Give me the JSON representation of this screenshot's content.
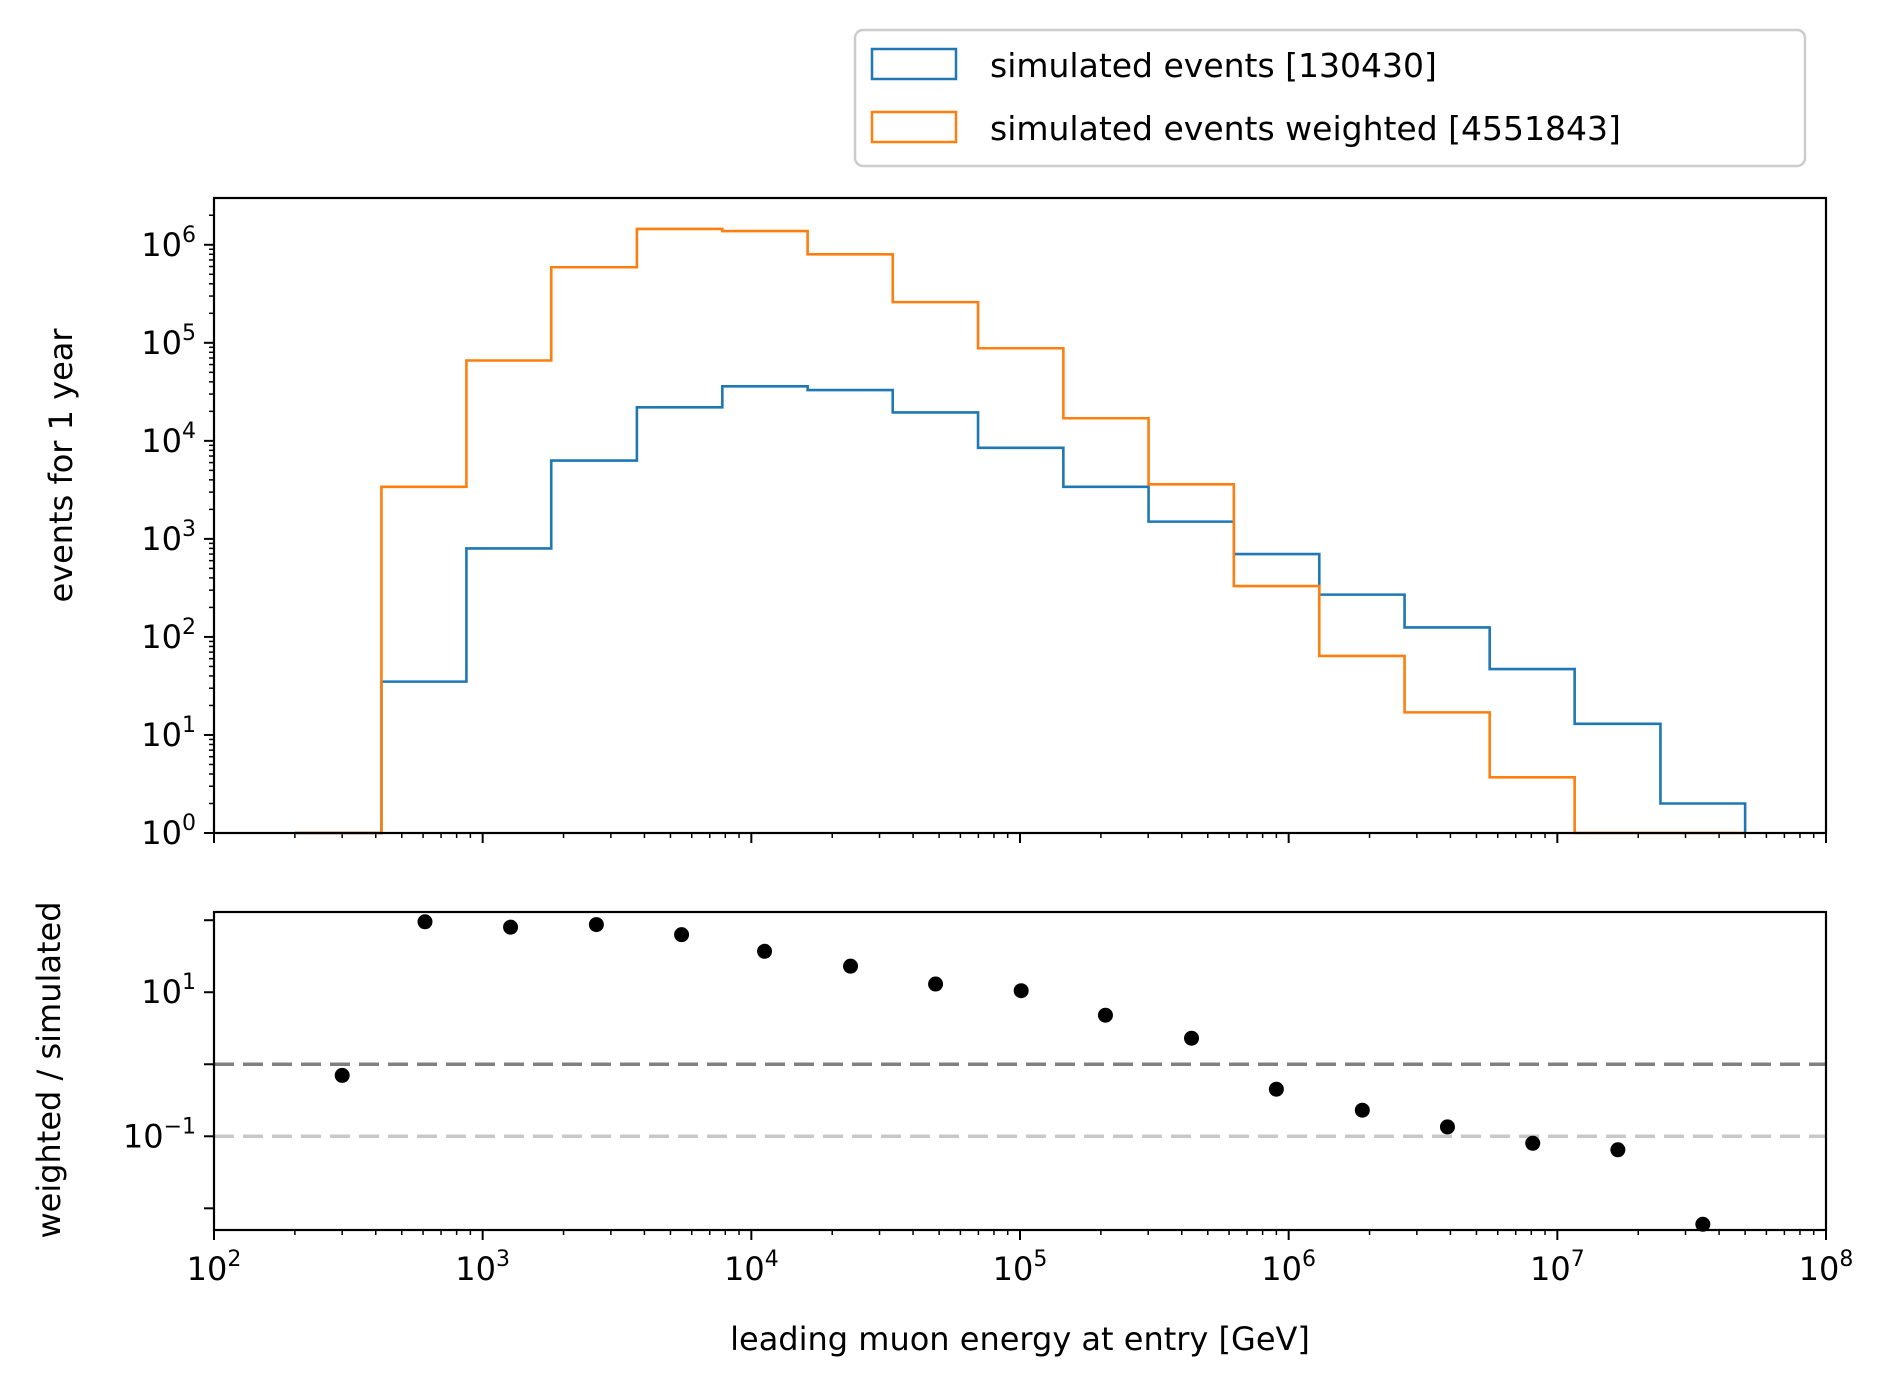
{
  "chart_data": [
    {
      "type": "histogram-step",
      "x_scale": "log",
      "y_scale": "log",
      "xlim": [
        100,
        100000000
      ],
      "ylim": [
        1,
        3000000
      ],
      "xlabel": "",
      "ylabel": "events for 1 year",
      "x_tick_labels": [
        {
          "value": 100,
          "base": "10",
          "exp": "2"
        },
        {
          "value": 1000,
          "base": "10",
          "exp": "3"
        },
        {
          "value": 10000,
          "base": "10",
          "exp": "4"
        },
        {
          "value": 100000,
          "base": "10",
          "exp": "5"
        },
        {
          "value": 1000000,
          "base": "10",
          "exp": "6"
        },
        {
          "value": 10000000,
          "base": "10",
          "exp": "7"
        },
        {
          "value": 100000000,
          "base": "10",
          "exp": "8"
        }
      ],
      "y_tick_labels": [
        {
          "value": 1,
          "base": "10",
          "exp": "0"
        },
        {
          "value": 10,
          "base": "10",
          "exp": "1"
        },
        {
          "value": 100,
          "base": "10",
          "exp": "2"
        },
        {
          "value": 1000,
          "base": "10",
          "exp": "3"
        },
        {
          "value": 10000,
          "base": "10",
          "exp": "4"
        },
        {
          "value": 100000,
          "base": "10",
          "exp": "5"
        },
        {
          "value": 1000000,
          "base": "10",
          "exp": "6"
        }
      ],
      "bin_edges": [
        200,
        420,
        870,
        1800,
        3750,
        7800,
        16200,
        33600,
        69800,
        145000,
        301000,
        625000,
        1300000,
        2700000,
        5600000,
        11600000,
        24200000,
        50000000
      ],
      "series": [
        {
          "name": "simulated events [130430]",
          "color": "#1f77b4",
          "values": [
            1,
            35,
            800,
            6300,
            22000,
            36000,
            33000,
            19500,
            8500,
            3400,
            1500,
            700,
            270,
            125,
            47,
            13,
            2
          ]
        },
        {
          "name": "simulated events weighted [4551843]",
          "color": "#ff7f0e",
          "values": [
            0,
            3400,
            66000,
            590000,
            1450000,
            1380000,
            800000,
            260000,
            88000,
            17000,
            3600,
            330,
            64,
            17,
            3.7,
            0.9,
            0
          ]
        }
      ],
      "legend": {
        "placement": "above top-right",
        "entries": [
          {
            "label": "simulated events [130430]",
            "color": "#1f77b4"
          },
          {
            "label": "simulated events weighted [4551843]",
            "color": "#ff7f0e"
          }
        ]
      }
    },
    {
      "type": "scatter",
      "x_scale": "log",
      "y_scale": "log",
      "xlim": [
        100,
        100000000
      ],
      "ylim": [
        0.005,
        130
      ],
      "xlabel": "leading muon energy at entry [GeV]",
      "ylabel": "weighted / simulated",
      "y_tick_labels": [
        {
          "value": 0.1,
          "base": "10",
          "exp": "−1"
        },
        {
          "value": 10,
          "base": "10",
          "exp": "1"
        }
      ],
      "marker_color": "#000000",
      "points": [
        {
          "x": 300,
          "y": 0.7
        },
        {
          "x": 610,
          "y": 95
        },
        {
          "x": 1270,
          "y": 80
        },
        {
          "x": 2650,
          "y": 87
        },
        {
          "x": 5500,
          "y": 63
        },
        {
          "x": 11200,
          "y": 37
        },
        {
          "x": 23400,
          "y": 23
        },
        {
          "x": 48500,
          "y": 13
        },
        {
          "x": 101000,
          "y": 10.5
        },
        {
          "x": 208000,
          "y": 4.8
        },
        {
          "x": 435000,
          "y": 2.3
        },
        {
          "x": 900000,
          "y": 0.45
        },
        {
          "x": 1880000,
          "y": 0.23
        },
        {
          "x": 3900000,
          "y": 0.135
        },
        {
          "x": 8100000,
          "y": 0.08
        },
        {
          "x": 16800000,
          "y": 0.065
        },
        {
          "x": 34800000,
          "y": 0.006
        }
      ],
      "reference_lines": [
        {
          "y": 1,
          "color": "#808080",
          "style": "dashed"
        },
        {
          "y": 0.1,
          "color": "#c8c8c8",
          "style": "dashed"
        }
      ]
    }
  ]
}
